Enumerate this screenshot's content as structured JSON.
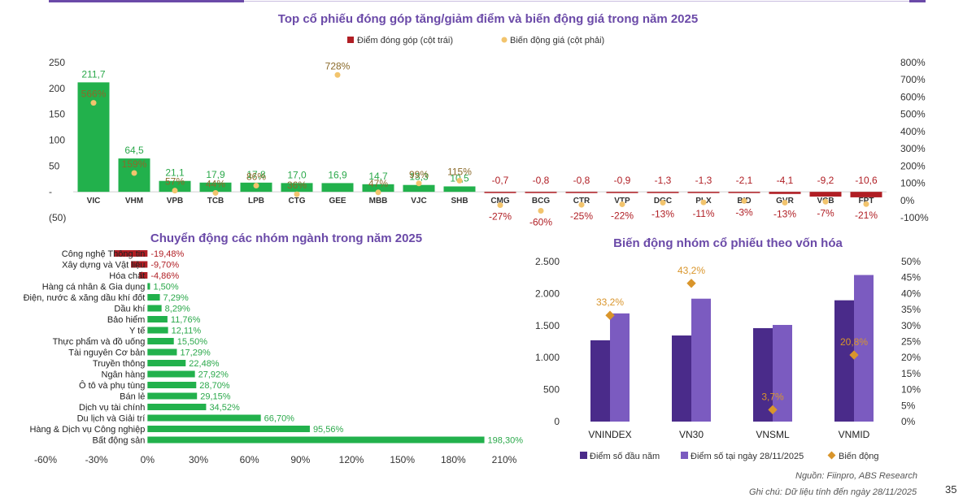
{
  "page": {
    "number": "35"
  },
  "footer": {
    "source": "Nguồn: Fiinpro, ABS Research",
    "note": "Ghi chú: Dữ liệu tính đến ngày 28/11/2025"
  },
  "colors": {
    "green": "#22b14c",
    "green_text": "#2aa84a",
    "red": "#b01e24",
    "gold": "#f2c46d",
    "gold_text": "#8a6a2a",
    "purple_dark": "#4a2b8a",
    "purple_light": "#7b5bc0",
    "diamond": "#d9952b",
    "title": "#6b4aa8"
  },
  "chart_data": [
    {
      "id": "top-stocks",
      "type": "bar+scatter",
      "title": "Top cổ phiếu đóng góp tăng/giảm điểm và biến động giá trong năm 2025",
      "legend": [
        "Điểm đóng góp (cột trái)",
        "Biến động giá (cột phải)"
      ],
      "categories": [
        "VIC",
        "VHM",
        "VPB",
        "TCB",
        "LPB",
        "CTG",
        "GEE",
        "MBB",
        "VJC",
        "SHB",
        "CMG",
        "BCG",
        "CTR",
        "VTP",
        "DGC",
        "PLX",
        "BID",
        "GVR",
        "VCB",
        "FPT"
      ],
      "contribution": [
        211.7,
        64.5,
        21.1,
        17.9,
        17.8,
        17.0,
        16.9,
        14.7,
        13.3,
        10.5,
        -0.7,
        -0.8,
        -0.8,
        -0.9,
        -1.3,
        -1.3,
        -2.1,
        -4.1,
        -9.2,
        -10.6
      ],
      "contribution_labels": [
        "211,7",
        "64,5",
        "21,1",
        "17,9",
        "17,8",
        "17,0",
        "16,9",
        "14,7",
        "13,3",
        "10,5",
        "-0,7",
        "-0,8",
        "-0,8",
        "-0,9",
        "-1,3",
        "-1,3",
        "-2,1",
        "-4,1",
        "-9,2",
        "-10,6"
      ],
      "price_change_pct": [
        566,
        159,
        57,
        44,
        86,
        36,
        728,
        47,
        99,
        115,
        -27,
        -60,
        -25,
        -22,
        -13,
        -11,
        -3,
        -13,
        -7,
        -21
      ],
      "price_labels": [
        "566%",
        "159%",
        "57%",
        "44%",
        "86%",
        "36%",
        "728%",
        "47%",
        "99%",
        "115%",
        "-27%",
        "-60%",
        "-25%",
        "-22%",
        "-13%",
        "-11%",
        "-3%",
        "-13%",
        "-7%",
        "-21%"
      ],
      "y_left": {
        "min": -50,
        "max": 250,
        "ticks": [
          250,
          200,
          150,
          100,
          50,
          0,
          -50
        ],
        "tick_labels": [
          "250",
          "200",
          "150",
          "100",
          "50",
          "-",
          "(50)"
        ]
      },
      "y_right": {
        "min": -100,
        "max": 800,
        "ticks": [
          800,
          700,
          600,
          500,
          400,
          300,
          200,
          100,
          0,
          -100
        ],
        "tick_labels": [
          "800%",
          "700%",
          "600%",
          "500%",
          "400%",
          "300%",
          "200%",
          "100%",
          "0%",
          "-100%"
        ]
      }
    },
    {
      "id": "sectors",
      "type": "hbar",
      "title": "Chuyển động các nhóm ngành trong năm 2025",
      "categories": [
        "Công nghệ Thông tin",
        "Xây dựng và Vật liệu",
        "Hóa chất",
        "Hàng cá nhân & Gia dụng",
        "Điện, nước & xăng dầu khí đốt",
        "Dầu khí",
        "Bảo hiểm",
        "Y tế",
        "Thực phẩm và đồ uống",
        "Tài nguyên Cơ bản",
        "Truyền thông",
        "Ngân hàng",
        "Ô tô và phụ tùng",
        "Bán lẻ",
        "Dịch vụ tài chính",
        "Du lịch và Giải trí",
        "Hàng & Dịch vụ Công nghiệp",
        "Bất động sản"
      ],
      "values": [
        -19.48,
        -9.7,
        -4.86,
        1.5,
        7.29,
        8.29,
        11.76,
        12.11,
        15.5,
        17.29,
        22.48,
        27.92,
        28.7,
        29.15,
        34.52,
        66.7,
        95.56,
        198.3
      ],
      "value_labels": [
        "-19,48%",
        "-9,70%",
        "-4,86%",
        "1,50%",
        "7,29%",
        "8,29%",
        "11,76%",
        "12,11%",
        "15,50%",
        "17,29%",
        "22,48%",
        "27,92%",
        "28,70%",
        "29,15%",
        "34,52%",
        "66,70%",
        "95,56%",
        "198,30%"
      ],
      "x_axis": {
        "min": -60,
        "max": 210,
        "ticks": [
          -60,
          -30,
          0,
          30,
          60,
          90,
          120,
          150,
          180,
          210
        ],
        "tick_labels": [
          "-60%",
          "-30%",
          "0%",
          "30%",
          "60%",
          "90%",
          "120%",
          "150%",
          "180%",
          "210%"
        ]
      }
    },
    {
      "id": "market-cap-groups",
      "type": "bar+scatter",
      "title": "Biến động nhóm cổ phiếu theo vốn hóa",
      "categories": [
        "VNINDEX",
        "VN30",
        "VNSML",
        "VNMID"
      ],
      "series": [
        {
          "name": "Điểm số đầu năm",
          "values": [
            1270,
            1345,
            1460,
            1895
          ]
        },
        {
          "name": "Điểm số tại ngày 28/11/2025",
          "values": [
            1690,
            1920,
            1510,
            2290
          ]
        }
      ],
      "change": {
        "name": "Biến động",
        "values": [
          33.2,
          43.2,
          3.7,
          20.8
        ],
        "labels": [
          "33,2%",
          "43,2%",
          "3,7%",
          "20,8%"
        ]
      },
      "y_left": {
        "min": 0,
        "max": 2500,
        "ticks": [
          2500,
          2000,
          1500,
          1000,
          500,
          0
        ],
        "tick_labels": [
          "2.500",
          "2.000",
          "1.500",
          "1.000",
          "500",
          "0"
        ]
      },
      "y_right": {
        "min": 0,
        "max": 50,
        "ticks": [
          50,
          45,
          40,
          35,
          30,
          25,
          20,
          15,
          10,
          5,
          0
        ],
        "tick_labels": [
          "50%",
          "45%",
          "40%",
          "35%",
          "30%",
          "25%",
          "20%",
          "15%",
          "10%",
          "5%",
          "0%"
        ]
      }
    }
  ]
}
